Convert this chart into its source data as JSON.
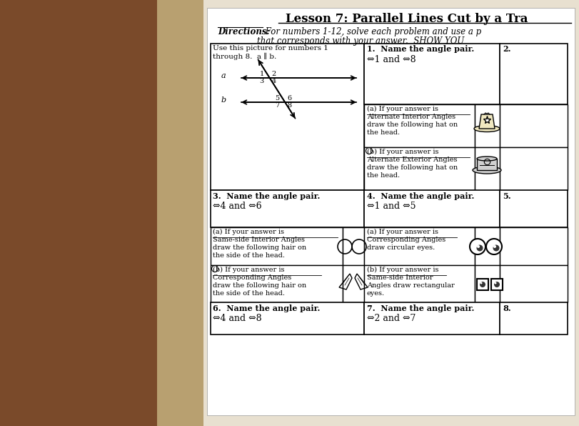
{
  "title": "Lesson 7: Parallel Lines Cut by a Tra",
  "directions_bold": "Directions:",
  "directions_text": " For numbers 1-12, solve each problem and use a p",
  "directions_text2": "that corresponds with your answer.  SHOW YOU",
  "bg_color": "#c8b89a",
  "paper_color": "#ffffff",
  "wood_color": "#7a4a2a",
  "table_line_color": "#000000",
  "text_color": "#000000"
}
